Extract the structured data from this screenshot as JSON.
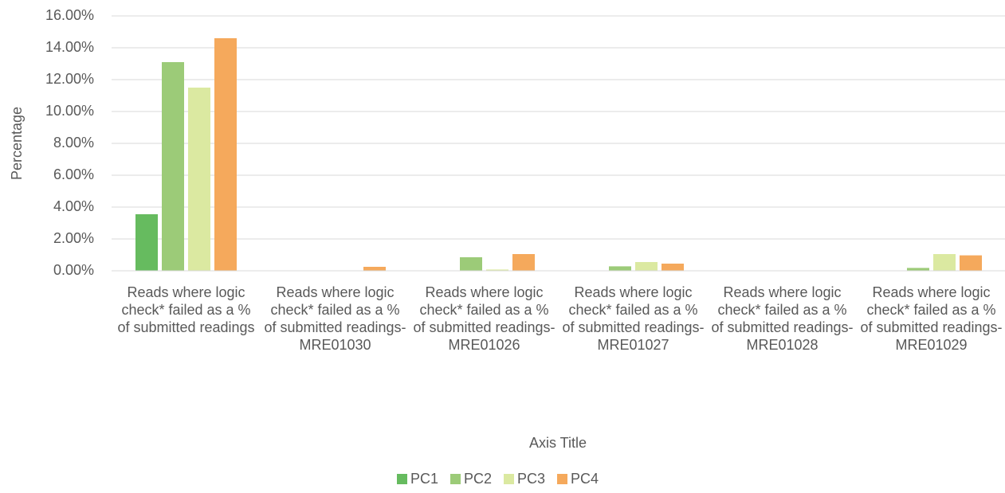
{
  "chart_data": {
    "type": "bar",
    "y_label": "Percentage",
    "x_label": "Axis Title",
    "categories": [
      "Reads where logic check* failed as a % of submitted readings",
      "Reads where logic check* failed as a % of submitted readings-MRE01030",
      "Reads where logic check* failed as a % of submitted readings-MRE01026",
      "Reads where logic check* failed as a % of submitted readings-MRE01027",
      "Reads where logic check* failed as a % of submitted readings-MRE01028",
      "Reads where logic check* failed as a % of submitted readings-MRE01029"
    ],
    "series": [
      {
        "name": "PC1",
        "color": "#66bb5f",
        "values": [
          3.55,
          0,
          0,
          0,
          0,
          0
        ]
      },
      {
        "name": "PC2",
        "color": "#9ccb78",
        "values": [
          13.1,
          0,
          0.85,
          0.28,
          0,
          0.18
        ]
      },
      {
        "name": "PC3",
        "color": "#dbe9a1",
        "values": [
          11.5,
          0,
          0.08,
          0.55,
          0,
          1.05
        ]
      },
      {
        "name": "PC4",
        "color": "#f5a95c",
        "values": [
          14.6,
          0.25,
          1.05,
          0.45,
          0,
          0.97
        ]
      }
    ],
    "ylim": [
      0,
      16
    ],
    "yticks": [
      {
        "value": 0,
        "label": "0.00%"
      },
      {
        "value": 2,
        "label": "2.00%"
      },
      {
        "value": 4,
        "label": "4.00%"
      },
      {
        "value": 6,
        "label": "6.00%"
      },
      {
        "value": 8,
        "label": "8.00%"
      },
      {
        "value": 10,
        "label": "10.00%"
      },
      {
        "value": 12,
        "label": "12.00%"
      },
      {
        "value": 14,
        "label": "14.00%"
      },
      {
        "value": 16,
        "label": "16.00%"
      }
    ],
    "grid": true,
    "legend": "bottom"
  }
}
